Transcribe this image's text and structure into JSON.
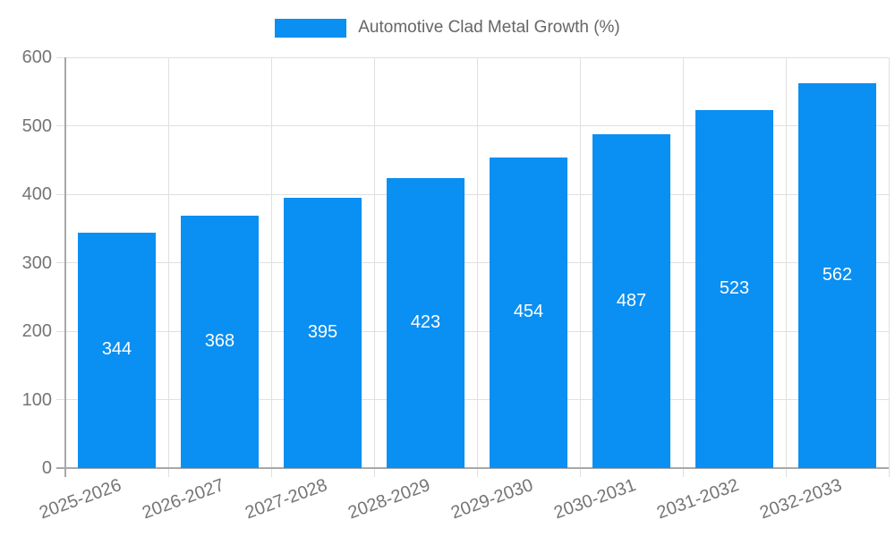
{
  "legend": {
    "label": "Automotive Clad Metal Growth (%)"
  },
  "colors": {
    "bar": "#0a8ff2",
    "grid": "#e0e0e0",
    "axis": "#a8a8a8",
    "tick_text": "#757575",
    "legend_text": "#666666",
    "value_label": "#ffffff",
    "background": "#ffffff"
  },
  "chart_data": {
    "type": "bar",
    "title": "Automotive Clad Metal Growth (%)",
    "categories": [
      "2025-2026",
      "2026-2027",
      "2027-2028",
      "2028-2029",
      "2029-2030",
      "2030-2031",
      "2031-2032",
      "2032-2033"
    ],
    "values": [
      344,
      368,
      395,
      423,
      454,
      487,
      523,
      562
    ],
    "xlabel": "",
    "ylabel": "",
    "ylim": [
      0,
      600
    ],
    "yticks": [
      0,
      100,
      200,
      300,
      400,
      500,
      600
    ],
    "grid": true,
    "legend_position": "top-center",
    "value_label_position": "inside-center",
    "x_tick_rotation_deg": -20
  }
}
